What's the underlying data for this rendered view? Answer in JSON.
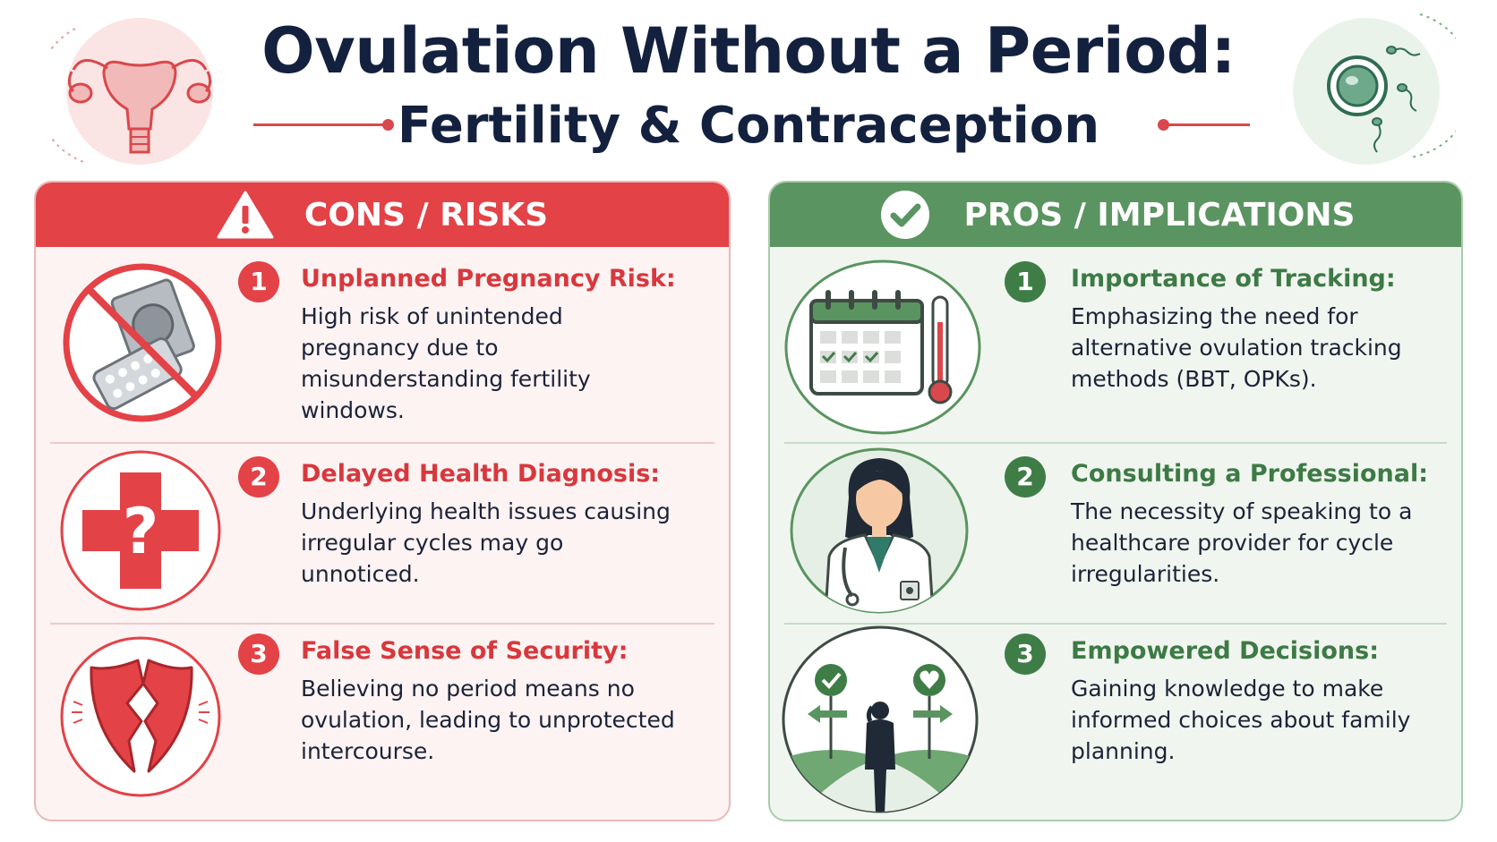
{
  "header": {
    "title_line1": "Ovulation Without a Period:",
    "title_line2": "Fertility & Contraception",
    "left_icon": "uterus-icon",
    "right_icon": "egg-and-sperm-icon"
  },
  "colors": {
    "title": "#13213f",
    "cons_accent": "#e34247",
    "pros_accent": "#5a9460",
    "cons_background": "#fdf3f3",
    "pros_background": "#f0f6ef"
  },
  "cons": {
    "heading": "CONS / RISKS",
    "heading_icon": "warning-icon",
    "items": [
      {
        "number": "1",
        "title": "Unplanned Pregnancy Risk:",
        "description": "High risk of unintended pregnancy due to misunderstanding fertility windows.",
        "icon": "no-contraception-icon"
      },
      {
        "number": "2",
        "title": "Delayed Health Diagnosis:",
        "description": "Underlying health issues causing irregular cycles may go unnoticed.",
        "icon": "medical-question-icon"
      },
      {
        "number": "3",
        "title": "False Sense of Security:",
        "description": "Believing no period means no ovulation, leading to unprotected intercourse.",
        "icon": "broken-shield-icon"
      }
    ]
  },
  "pros": {
    "heading": "PROS / IMPLICATIONS",
    "heading_icon": "check-circle-icon",
    "items": [
      {
        "number": "1",
        "title": "Importance of Tracking:",
        "description": "Emphasizing the need for alternative ovulation tracking methods (BBT, OPKs).",
        "icon": "calendar-thermometer-icon"
      },
      {
        "number": "2",
        "title": "Consulting a Professional:",
        "description": "The necessity of speaking to a healthcare provider for cycle irregularities.",
        "icon": "doctor-icon"
      },
      {
        "number": "3",
        "title": "Empowered Decisions:",
        "description": "Gaining knowledge to make informed choices about family planning.",
        "icon": "crossroads-decision-icon"
      }
    ]
  }
}
